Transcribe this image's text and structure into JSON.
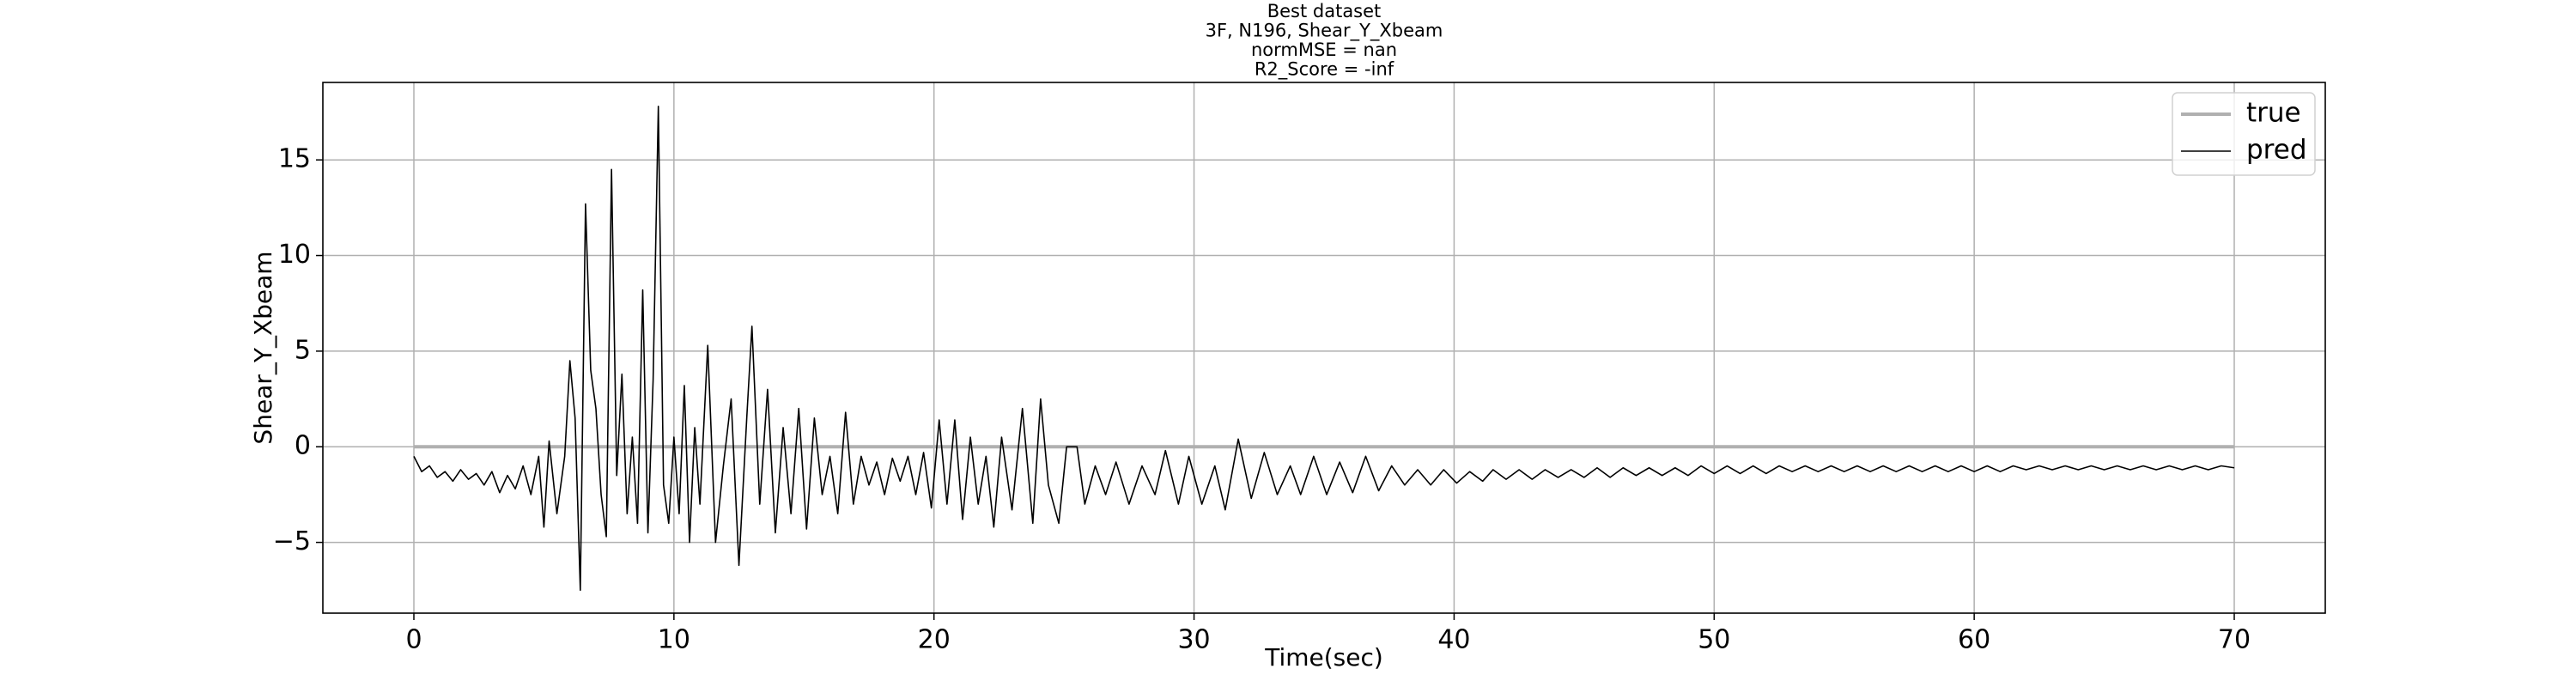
{
  "chart_data": {
    "type": "line",
    "title": [
      "Best dataset",
      "3F, N196, Shear_Y_Xbeam",
      "normMSE = nan",
      "R2_Score = -inf"
    ],
    "xlabel": "Time(sec)",
    "ylabel": "Shear_Y_Xbeam",
    "xlim": [
      -3.5,
      73.5
    ],
    "ylim": [
      -8.7,
      19.05
    ],
    "xticks": [
      0,
      10,
      20,
      30,
      40,
      50,
      60,
      70
    ],
    "yticks": [
      {
        "value": -5,
        "label": "−5"
      },
      0,
      5,
      10,
      15
    ],
    "grid": true,
    "legend": "upper right",
    "series": [
      {
        "name": "true",
        "color": "#b0b0b0",
        "x": [
          0,
          70
        ],
        "values": [
          0,
          0
        ]
      },
      {
        "name": "pred",
        "color": "#000000",
        "x": [
          0,
          0.3,
          0.6,
          0.9,
          1.2,
          1.5,
          1.8,
          2.1,
          2.4,
          2.7,
          3.0,
          3.3,
          3.6,
          3.9,
          4.2,
          4.5,
          4.8,
          5.0,
          5.2,
          5.5,
          5.8,
          6.0,
          6.2,
          6.4,
          6.6,
          6.8,
          7.0,
          7.2,
          7.4,
          7.6,
          7.8,
          8.0,
          8.2,
          8.4,
          8.6,
          8.8,
          9.0,
          9.2,
          9.4,
          9.6,
          9.8,
          10.0,
          10.2,
          10.4,
          10.6,
          10.8,
          11.0,
          11.3,
          11.6,
          11.9,
          12.2,
          12.5,
          12.8,
          13.0,
          13.3,
          13.6,
          13.9,
          14.2,
          14.5,
          14.8,
          15.1,
          15.4,
          15.7,
          16.0,
          16.3,
          16.6,
          16.9,
          17.2,
          17.5,
          17.8,
          18.1,
          18.4,
          18.7,
          19.0,
          19.3,
          19.6,
          19.9,
          20.2,
          20.5,
          20.8,
          21.1,
          21.4,
          21.7,
          22.0,
          22.3,
          22.6,
          23.0,
          23.4,
          23.8,
          24.1,
          24.4,
          24.8,
          25.1,
          25.5,
          25.8,
          26.2,
          26.6,
          27.0,
          27.5,
          28.0,
          28.5,
          28.9,
          29.4,
          29.8,
          30.3,
          30.8,
          31.2,
          31.7,
          32.2,
          32.7,
          33.2,
          33.7,
          34.1,
          34.6,
          35.1,
          35.6,
          36.1,
          36.6,
          37.1,
          37.6,
          38.1,
          38.6,
          39.1,
          39.6,
          40.1,
          40.6,
          41.1,
          41.5,
          42,
          42.5,
          43,
          43.5,
          44,
          44.5,
          45,
          45.5,
          46,
          46.5,
          47,
          47.5,
          48,
          48.5,
          49,
          49.5,
          50,
          50.5,
          51,
          51.5,
          52,
          52.5,
          53,
          53.5,
          54,
          54.5,
          55,
          55.5,
          56,
          56.5,
          57,
          57.5,
          58,
          58.5,
          59,
          59.5,
          60,
          60.5,
          61,
          61.5,
          62,
          62.5,
          63,
          63.5,
          64,
          64.5,
          65,
          65.5,
          66,
          66.5,
          67,
          67.5,
          68,
          68.5,
          69,
          69.5,
          70
        ],
        "values": [
          -0.5,
          -1.3,
          -1.0,
          -1.6,
          -1.3,
          -1.8,
          -1.2,
          -1.7,
          -1.4,
          -2.0,
          -1.3,
          -2.4,
          -1.5,
          -2.2,
          -1.0,
          -2.5,
          -0.5,
          -4.2,
          0.3,
          -3.5,
          -0.5,
          4.5,
          1.5,
          -7.5,
          12.7,
          4.0,
          2.0,
          -2.5,
          -4.7,
          14.5,
          -1.5,
          3.8,
          -3.5,
          0.5,
          -4.0,
          8.2,
          -4.5,
          3.5,
          17.8,
          -2.0,
          -4.0,
          0.5,
          -3.5,
          3.2,
          -5.0,
          1.0,
          -3.0,
          5.3,
          -5.0,
          -1.0,
          2.5,
          -6.2,
          1.5,
          6.3,
          -3.0,
          3.0,
          -4.5,
          1.0,
          -3.5,
          2.0,
          -4.3,
          1.5,
          -2.5,
          -0.5,
          -3.5,
          1.8,
          -3.0,
          -0.5,
          -2.0,
          -0.8,
          -2.5,
          -0.6,
          -1.8,
          -0.5,
          -2.5,
          -0.3,
          -3.2,
          1.4,
          -3.0,
          1.4,
          -3.8,
          0.5,
          -3.0,
          -0.5,
          -4.2,
          0.5,
          -3.3,
          2.0,
          -4.0,
          2.5,
          -2.0,
          -4.0,
          0.0,
          0.0,
          -3.0,
          -1.0,
          -2.5,
          -0.8,
          -3.0,
          -1.0,
          -2.5,
          -0.2,
          -3.0,
          -0.5,
          -3.0,
          -1.0,
          -3.3,
          0.4,
          -2.7,
          -0.3,
          -2.5,
          -1.0,
          -2.5,
          -0.5,
          -2.5,
          -0.8,
          -2.4,
          -0.5,
          -2.3,
          -1.0,
          -2.0,
          -1.2,
          -2.0,
          -1.2,
          -1.9,
          -1.3,
          -1.8,
          -1.2,
          -1.7,
          -1.2,
          -1.7,
          -1.2,
          -1.6,
          -1.2,
          -1.6,
          -1.1,
          -1.6,
          -1.1,
          -1.5,
          -1.1,
          -1.5,
          -1.1,
          -1.5,
          -1.0,
          -1.4,
          -1.0,
          -1.4,
          -1.0,
          -1.4,
          -1.0,
          -1.3,
          -1.0,
          -1.3,
          -1.0,
          -1.3,
          -1.0,
          -1.3,
          -1.0,
          -1.3,
          -1.0,
          -1.3,
          -1.0,
          -1.3,
          -1.0,
          -1.3,
          -1.0,
          -1.3,
          -1.0,
          -1.2,
          -1.0,
          -1.2,
          -1.0,
          -1.2,
          -1.0,
          -1.2,
          -1.0,
          -1.2,
          -1.0,
          -1.2,
          -1.0,
          -1.2,
          -1.0,
          -1.2,
          -1.0,
          -1.1
        ]
      }
    ]
  }
}
